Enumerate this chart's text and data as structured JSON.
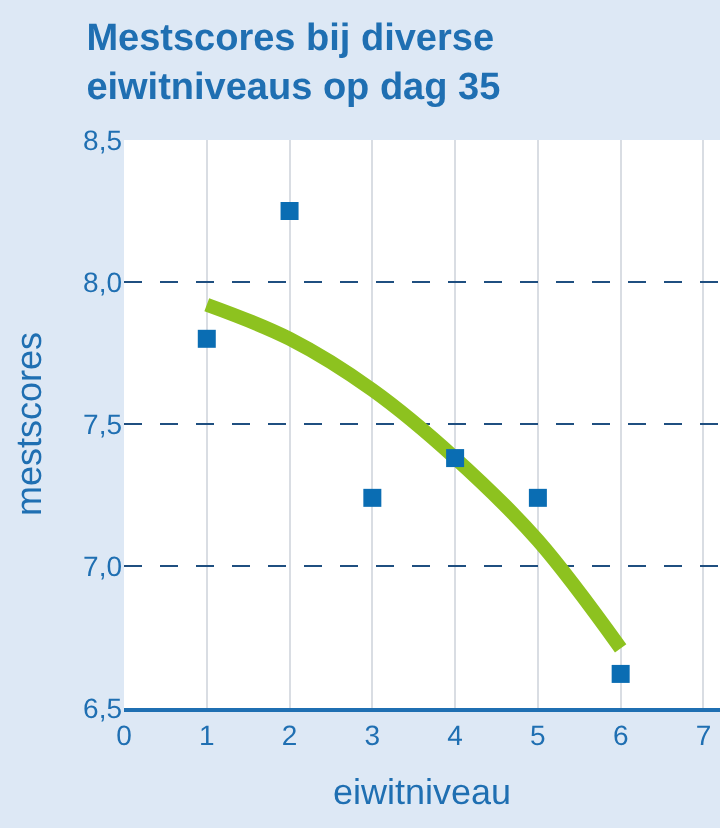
{
  "chart_data": {
    "type": "scatter",
    "title": "Mestscores bij diverse eiwitniveaus op dag 35",
    "xlabel": "eiwitniveau",
    "ylabel": "mestscores",
    "series": [
      {
        "color": "#0a6db3",
        "marker": "square",
        "x": [
          1,
          2,
          3,
          4,
          5,
          6
        ],
        "values": [
          7.8,
          8.25,
          7.24,
          7.38,
          7.24,
          6.62
        ]
      },
      {
        "type": "line",
        "color": "#8dc21f",
        "x": [
          1,
          2,
          3,
          4,
          5,
          6
        ],
        "values": [
          7.92,
          7.8,
          7.62,
          7.38,
          7.09,
          6.71
        ]
      }
    ],
    "xlim": [
      0,
      7.2
    ],
    "xticks": [
      0,
      1,
      2,
      3,
      4,
      5,
      6,
      7
    ],
    "ylim": [
      6.5,
      8.5
    ],
    "yticks": [
      {
        "value": 6.5,
        "label": "6,5"
      },
      {
        "value": 7.0,
        "label": "7,0"
      },
      {
        "value": 7.5,
        "label": "7,5"
      },
      {
        "value": 8.0,
        "label": "8,0"
      },
      {
        "value": 8.5,
        "label": "8,5"
      }
    ],
    "grid": true
  }
}
